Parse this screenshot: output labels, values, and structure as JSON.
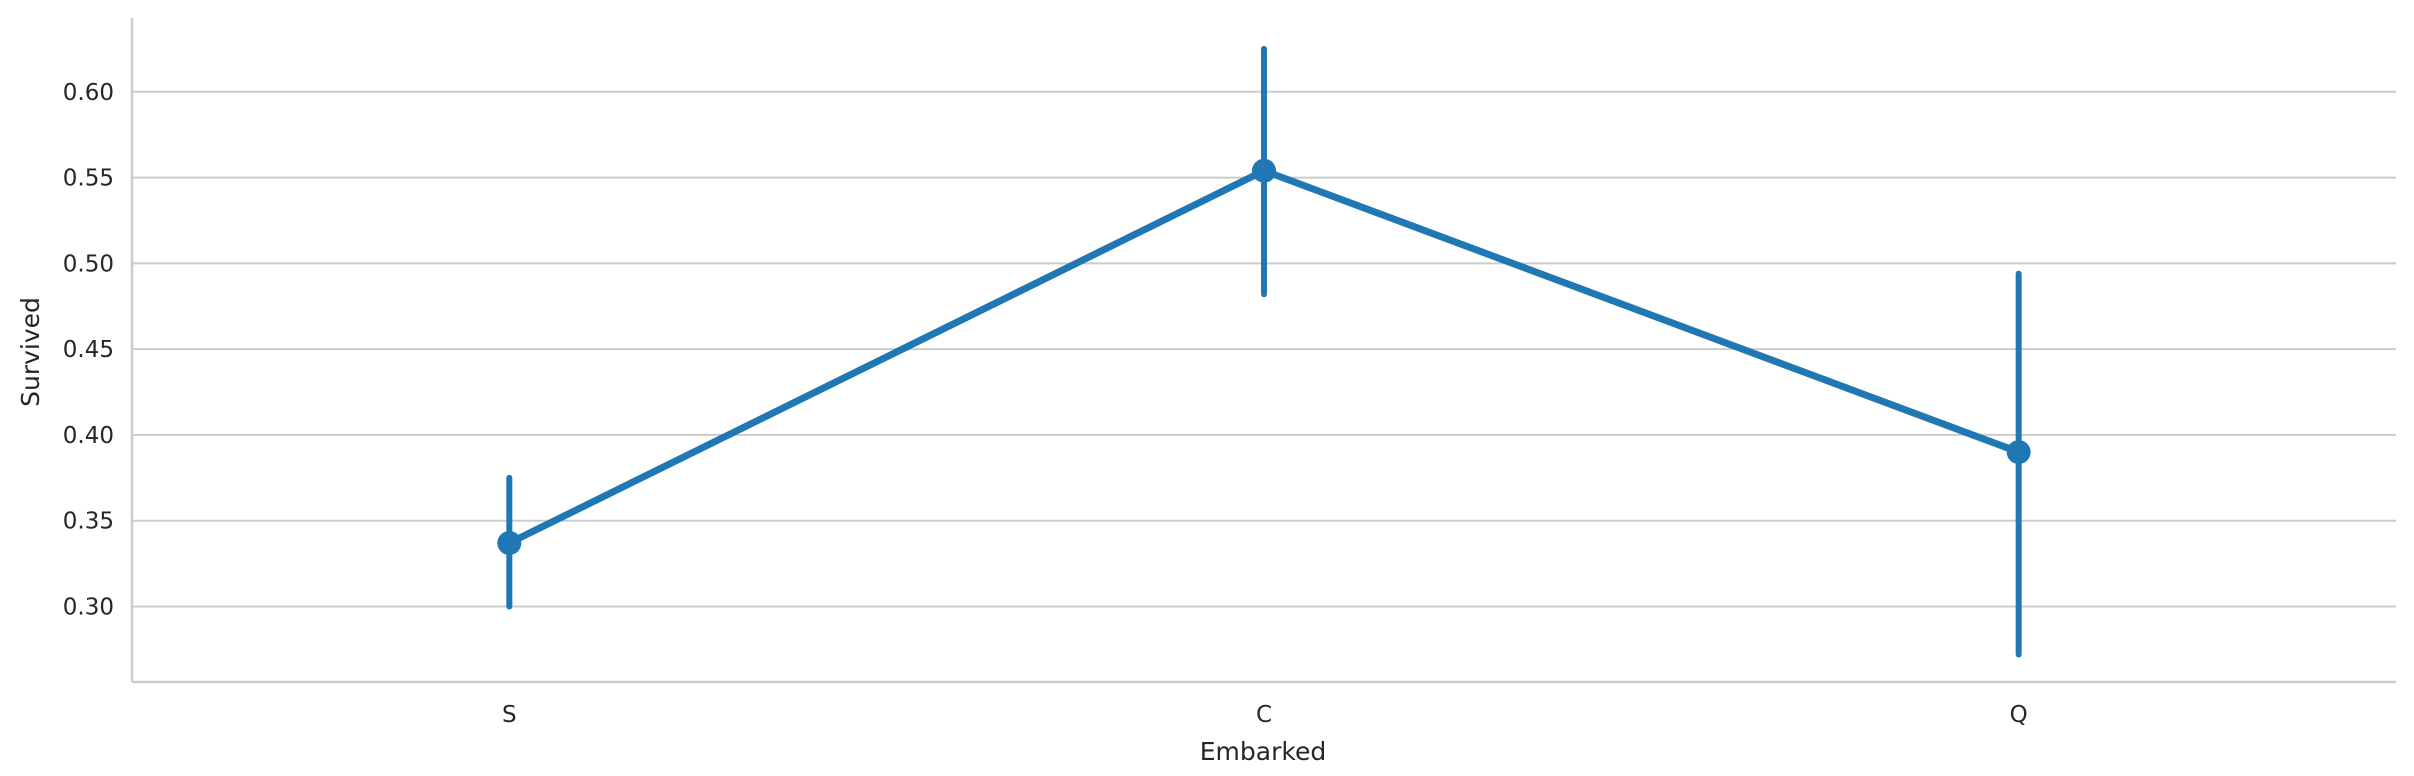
{
  "chart_data": {
    "type": "line",
    "title": "",
    "xlabel": "Embarked",
    "ylabel": "Survived",
    "categories": [
      "S",
      "C",
      "Q"
    ],
    "series": [
      {
        "values": [
          0.337,
          0.554,
          0.39
        ],
        "ci_low": [
          0.3,
          0.482,
          0.272
        ],
        "ci_high": [
          0.375,
          0.625,
          0.494
        ]
      }
    ],
    "yticks": [
      0.3,
      0.35,
      0.4,
      0.45,
      0.5,
      0.55,
      0.6
    ],
    "ytick_labels": [
      "0.30",
      "0.35",
      "0.40",
      "0.45",
      "0.50",
      "0.55",
      "0.60"
    ],
    "ylim": [
      0.256,
      0.643
    ],
    "grid": "horizontal",
    "legend": "none",
    "colors": {
      "series": "#1f77b4",
      "grid": "#cccccc",
      "axis": "#cccccc",
      "text": "#262626"
    }
  }
}
